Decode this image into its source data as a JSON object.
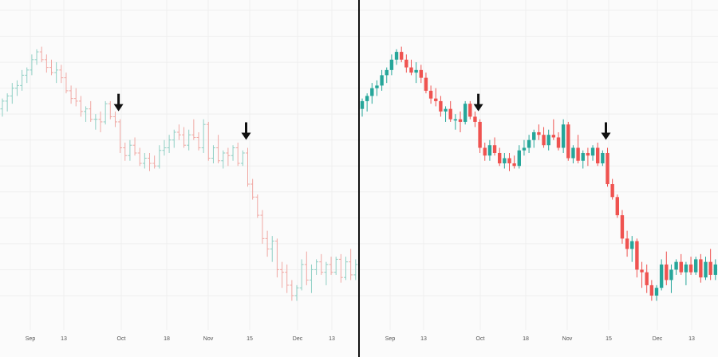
{
  "chart_data": [
    {
      "type": "ohlc",
      "style": "bars",
      "x_tick_labels": [
        "Sep",
        "13",
        "Oct",
        "18",
        "Nov",
        "15",
        "Dec",
        "13"
      ],
      "grid": true,
      "annotations": [
        {
          "type": "down-arrow",
          "at_bar": 24
        },
        {
          "type": "down-arrow",
          "at_bar": 50
        }
      ],
      "colors": {
        "up": "#8fcfc4",
        "down": "#f0a8a3"
      }
    },
    {
      "type": "candlestick",
      "style": "candles",
      "x_tick_labels": [
        "Sep",
        "13",
        "Oct",
        "18",
        "Nov",
        "15",
        "Dec",
        "13"
      ],
      "grid": true,
      "annotations": [
        {
          "type": "down-arrow",
          "at_bar": 24
        },
        {
          "type": "down-arrow",
          "at_bar": 50
        }
      ],
      "colors": {
        "up": "#26a69a",
        "down": "#ef5350"
      }
    }
  ],
  "ohlc_series": [
    [
      172,
      176,
      169,
      175
    ],
    [
      175,
      178,
      171,
      177
    ],
    [
      177,
      182,
      174,
      180
    ],
    [
      180,
      183,
      177,
      181
    ],
    [
      181,
      187,
      179,
      185
    ],
    [
      185,
      188,
      182,
      187
    ],
    [
      187,
      193,
      185,
      191
    ],
    [
      191,
      195,
      189,
      194
    ],
    [
      194,
      196,
      190,
      191
    ],
    [
      191,
      193,
      186,
      188
    ],
    [
      188,
      191,
      185,
      186
    ],
    [
      186,
      190,
      182,
      187
    ],
    [
      187,
      189,
      182,
      184
    ],
    [
      184,
      186,
      178,
      179
    ],
    [
      179,
      181,
      174,
      176
    ],
    [
      176,
      180,
      173,
      175
    ],
    [
      175,
      177,
      169,
      171
    ],
    [
      171,
      173,
      167,
      172
    ],
    [
      172,
      175,
      167,
      168
    ],
    [
      168,
      170,
      164,
      168
    ],
    [
      168,
      171,
      163,
      167
    ],
    [
      167,
      175,
      166,
      174
    ],
    [
      174,
      175,
      168,
      169
    ],
    [
      169,
      171,
      165,
      167
    ],
    [
      167,
      168,
      155,
      157
    ],
    [
      157,
      159,
      152,
      154
    ],
    [
      154,
      160,
      152,
      158
    ],
    [
      158,
      161,
      154,
      155
    ],
    [
      155,
      157,
      150,
      151
    ],
    [
      151,
      155,
      149,
      153
    ],
    [
      153,
      155,
      148,
      151
    ],
    [
      151,
      154,
      149,
      150
    ],
    [
      150,
      158,
      149,
      156
    ],
    [
      156,
      160,
      154,
      157
    ],
    [
      157,
      162,
      155,
      160
    ],
    [
      160,
      164,
      157,
      163
    ],
    [
      163,
      166,
      160,
      162
    ],
    [
      162,
      165,
      157,
      158
    ],
    [
      158,
      164,
      156,
      162
    ],
    [
      162,
      168,
      160,
      161
    ],
    [
      161,
      163,
      156,
      157
    ],
    [
      157,
      168,
      155,
      166
    ],
    [
      166,
      167,
      152,
      153
    ],
    [
      153,
      158,
      151,
      157
    ],
    [
      157,
      162,
      151,
      152
    ],
    [
      152,
      156,
      149,
      155
    ],
    [
      155,
      157,
      150,
      154
    ],
    [
      154,
      158,
      152,
      157
    ],
    [
      157,
      159,
      150,
      151
    ],
    [
      151,
      156,
      150,
      155
    ],
    [
      155,
      157,
      142,
      143
    ],
    [
      143,
      145,
      137,
      138
    ],
    [
      138,
      139,
      130,
      131
    ],
    [
      131,
      133,
      120,
      122
    ],
    [
      122,
      125,
      115,
      118
    ],
    [
      118,
      123,
      113,
      121
    ],
    [
      121,
      122,
      107,
      110
    ],
    [
      110,
      113,
      103,
      109
    ],
    [
      109,
      112,
      101,
      104
    ],
    [
      104,
      106,
      98,
      100
    ],
    [
      100,
      104,
      98,
      103
    ],
    [
      103,
      114,
      102,
      112
    ],
    [
      112,
      117,
      104,
      106
    ],
    [
      106,
      112,
      101,
      110
    ],
    [
      110,
      114,
      108,
      113
    ],
    [
      113,
      116,
      108,
      109
    ],
    [
      109,
      113,
      104,
      112
    ],
    [
      112,
      115,
      108,
      109
    ],
    [
      109,
      115,
      108,
      114
    ],
    [
      114,
      116,
      105,
      107
    ],
    [
      107,
      115,
      106,
      113
    ],
    [
      113,
      118,
      106,
      108
    ],
    [
      108,
      114,
      106,
      112
    ]
  ]
}
